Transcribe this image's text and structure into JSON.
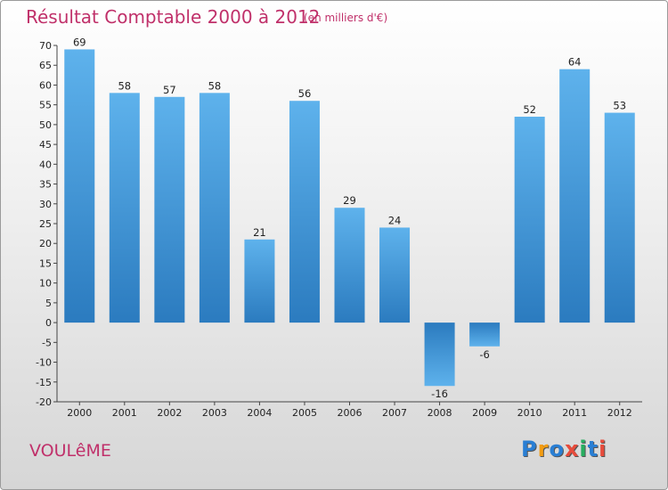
{
  "chart_data": {
    "type": "bar",
    "title": "Résultat Comptable 2000 à 2012",
    "subtitle": "(en milliers d'€)",
    "categories": [
      "2000",
      "2001",
      "2002",
      "2003",
      "2004",
      "2005",
      "2006",
      "2007",
      "2008",
      "2009",
      "2010",
      "2011",
      "2012"
    ],
    "values": [
      69,
      58,
      57,
      58,
      21,
      56,
      29,
      24,
      -16,
      -6,
      52,
      64,
      53
    ],
    "ylim": [
      -20,
      70
    ],
    "yticks": [
      70,
      65,
      60,
      55,
      50,
      45,
      40,
      35,
      30,
      25,
      20,
      15,
      10,
      5,
      0,
      -5,
      -10,
      -15,
      -20
    ],
    "grid": false,
    "bar_color": "#3a8ed4",
    "xlabel": "",
    "ylabel": ""
  },
  "commune": "VOULêME",
  "logo": {
    "text": "Proxiti",
    "letters": [
      "P",
      "r",
      "o",
      "x",
      "i",
      "t",
      "i"
    ],
    "colors": [
      "#2a7fd4",
      "#f39c12",
      "#2a7fd4",
      "#e74c3c",
      "#27ae60",
      "#2a7fd4",
      "#e74c3c"
    ]
  }
}
